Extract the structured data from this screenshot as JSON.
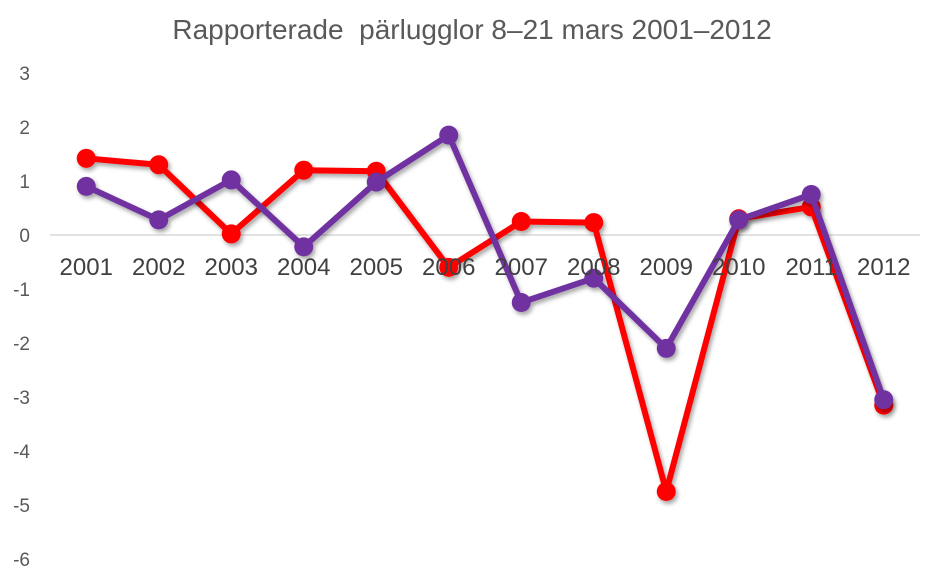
{
  "chart_data": {
    "type": "line",
    "title": "Rapporterade  pärlugglor 8–21 mars 2001–2012",
    "xlabel": "",
    "ylabel": "",
    "categories": [
      "2001",
      "2002",
      "2003",
      "2004",
      "2005",
      "2006",
      "2007",
      "2008",
      "2009",
      "2010",
      "2011",
      "2012"
    ],
    "ylim": [
      -6,
      3
    ],
    "yticks": [
      "3",
      "2",
      "1",
      "0",
      "-1",
      "-2",
      "-3",
      "-4",
      "-5",
      "-6"
    ],
    "grid": false,
    "legend": "none",
    "series": [
      {
        "color": "#ff0000",
        "values": [
          1.42,
          1.3,
          0.02,
          1.2,
          1.18,
          -0.6,
          0.25,
          0.23,
          -4.75,
          0.3,
          0.52,
          -3.15
        ]
      },
      {
        "color": "#7030a0",
        "values": [
          0.9,
          0.28,
          1.02,
          -0.22,
          0.98,
          1.85,
          -1.25,
          -0.8,
          -2.1,
          0.28,
          0.75,
          -3.05
        ]
      }
    ]
  }
}
